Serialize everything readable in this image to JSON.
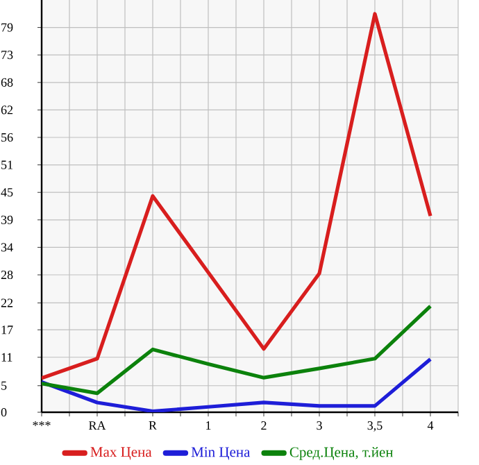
{
  "chart_data": {
    "type": "line",
    "categories": [
      "***",
      "RA",
      "R",
      "1",
      "2",
      "3",
      "3,5",
      "4"
    ],
    "series": [
      {
        "name": "Max Цена",
        "color": "#d81e1e",
        "values": [
          7.0,
          11.0,
          44.4,
          28.7,
          13.0,
          28.5,
          81.8,
          40.3
        ]
      },
      {
        "name": "Min Цена",
        "color": "#1e1ed8",
        "values": [
          6.2,
          2.0,
          0.2,
          1.1,
          2.0,
          1.3,
          1.3,
          10.9
        ]
      },
      {
        "name": "Сред.Цена, т.йен",
        "color": "#0c820c",
        "values": [
          5.9,
          3.9,
          12.9,
          9.9,
          7.1,
          9.0,
          11.0,
          21.8
        ]
      }
    ],
    "ylim": [
      0,
      84.64
    ],
    "yticks": [
      {
        "value": 0,
        "label": "0"
      },
      {
        "value": 5.45,
        "label": "5"
      },
      {
        "value": 11.29,
        "label": "11"
      },
      {
        "value": 16.93,
        "label": "17"
      },
      {
        "value": 22.45,
        "label": "22"
      },
      {
        "value": 28.21,
        "label": "28"
      },
      {
        "value": 33.86,
        "label": "34"
      },
      {
        "value": 39.5,
        "label": "39"
      },
      {
        "value": 45.14,
        "label": "45"
      },
      {
        "value": 50.79,
        "label": "51"
      },
      {
        "value": 56.43,
        "label": "56"
      },
      {
        "value": 62.07,
        "label": "62"
      },
      {
        "value": 67.71,
        "label": "68"
      },
      {
        "value": 73.36,
        "label": "73"
      },
      {
        "value": 79,
        "label": "79"
      }
    ],
    "grid": true,
    "legend": "bottom",
    "marker": "none",
    "line_style": "solid"
  }
}
